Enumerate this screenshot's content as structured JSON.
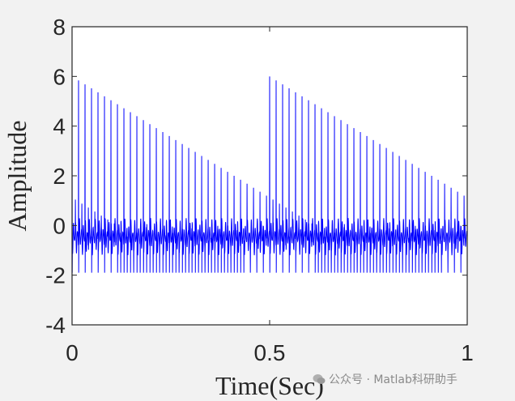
{
  "chart_data": {
    "type": "line",
    "title": "",
    "xlabel": "Time(Sec)",
    "ylabel": "Amplitude",
    "xlim": [
      0,
      1
    ],
    "ylim": [
      -4,
      8
    ],
    "xticks": [
      "0",
      "0.5",
      "1"
    ],
    "yticks": [
      "-4",
      "-2",
      "0",
      "2",
      "4",
      "6",
      "8"
    ],
    "grid": false,
    "line_color": "#0000ff",
    "series": [
      {
        "signal": "periodic_spikes_with_oscillation",
        "spike_peak": 6.0,
        "baseline_min": -1.9,
        "baseline_max": 0.3,
        "approx_spike_count": 122,
        "x_range": [
          0,
          1
        ]
      }
    ]
  },
  "watermark": {
    "icon": "wechat-icon",
    "text": "公众号 · Matlab科研助手"
  }
}
